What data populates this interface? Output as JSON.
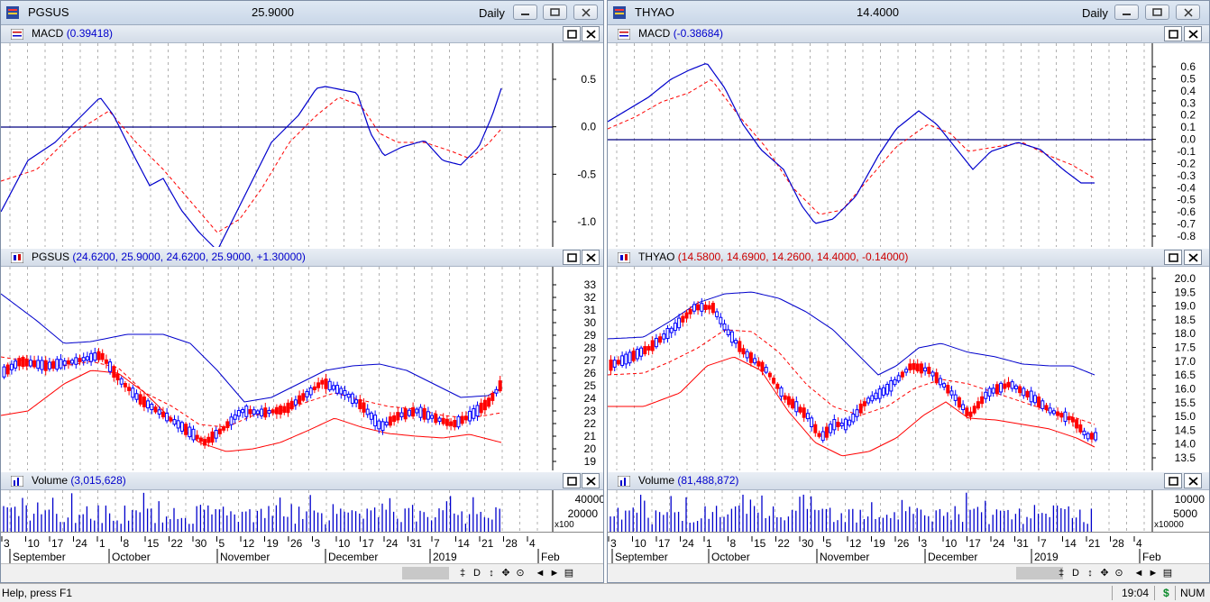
{
  "windows": [
    {
      "symbol": "PGSUS",
      "price": "25.9000",
      "period": "Daily",
      "macd": {
        "name": "MACD",
        "value": "(0.39418)"
      },
      "price_pane": {
        "name": "PGSUS",
        "value": "(24.6200, 25.9000, 24.6200, 25.9000, +1.30000)"
      },
      "volume": {
        "name": "Volume",
        "value": "(3,015,628)"
      },
      "macd_ticks": [
        "0.5",
        "0.0",
        "-0.5",
        "-1.0"
      ],
      "price_ticks": [
        "33",
        "32",
        "31",
        "30",
        "29",
        "28",
        "27",
        "26",
        "25",
        "24",
        "23",
        "22",
        "21",
        "20",
        "19"
      ],
      "volume_ticks": [
        "40000",
        "20000"
      ],
      "volume_multiplier": "x100",
      "date_ticks": [
        "3",
        "10",
        "17",
        "24",
        "1",
        "8",
        "15",
        "22",
        "30",
        "5",
        "12",
        "19",
        "26",
        "3",
        "10",
        "17",
        "24",
        "31",
        "7",
        "14",
        "21",
        "28",
        "4"
      ],
      "month_labels": [
        "September",
        "October",
        "November",
        "December",
        "2019",
        "Feb"
      ]
    },
    {
      "symbol": "THYAO",
      "price": "14.4000",
      "period": "Daily",
      "macd": {
        "name": "MACD",
        "value": "(-0.38684)"
      },
      "price_pane": {
        "name": "THYAO",
        "value": "(14.5800, 14.6900, 14.2600, 14.4000, -0.14000)"
      },
      "volume": {
        "name": "Volume",
        "value": "(81,488,872)"
      },
      "macd_ticks": [
        "0.6",
        "0.5",
        "0.4",
        "0.3",
        "0.2",
        "0.1",
        "0.0",
        "-0.1",
        "-0.2",
        "-0.3",
        "-0.4",
        "-0.5",
        "-0.6",
        "-0.7",
        "-0.8"
      ],
      "price_ticks": [
        "20.0",
        "19.5",
        "19.0",
        "18.5",
        "18.0",
        "17.5",
        "17.0",
        "16.5",
        "16.0",
        "15.5",
        "15.0",
        "14.5",
        "14.0",
        "13.5"
      ],
      "volume_ticks": [
        "10000",
        "5000"
      ],
      "volume_multiplier": "x10000",
      "date_ticks": [
        "3",
        "10",
        "17",
        "24",
        "1",
        "8",
        "15",
        "22",
        "30",
        "5",
        "12",
        "19",
        "26",
        "3",
        "10",
        "17",
        "24",
        "31",
        "7",
        "14",
        "21",
        "28",
        "4"
      ],
      "month_labels": [
        "September",
        "October",
        "November",
        "December",
        "2019",
        "Feb"
      ]
    }
  ],
  "scroll_buttons": [
    "‡",
    "D",
    "↕",
    "✥",
    "⊙",
    "◄",
    "►",
    "▤"
  ],
  "status": {
    "help": "Help, press F1",
    "time": "19:04",
    "currency": "$",
    "num": "NUM"
  },
  "colors": {
    "up": "#0000ff",
    "down": "#ff0000",
    "grid": "#a0a0a0",
    "macd_signal": "#ff0000",
    "macd_line": "#0000cc"
  }
}
